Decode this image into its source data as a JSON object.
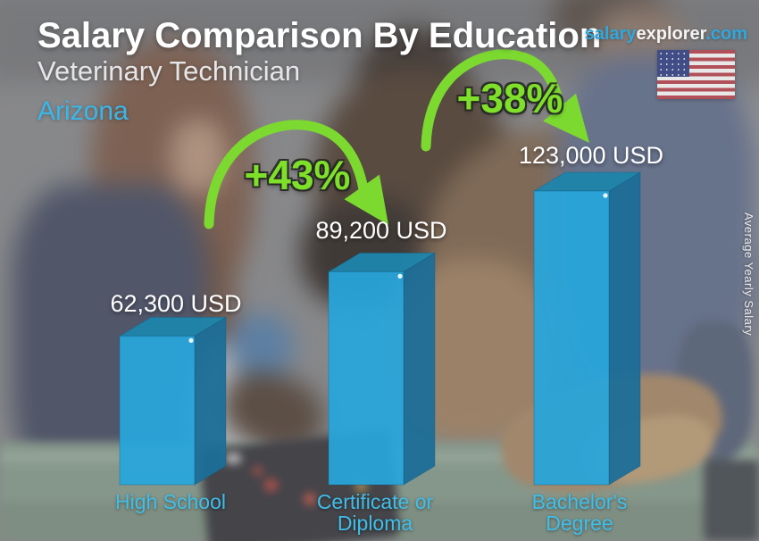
{
  "header": {
    "title": "Salary Comparison By Education",
    "subtitle": "Veterinary Technician",
    "location": "Arizona",
    "brand": {
      "salary": "salary",
      "explorer": "explorer",
      "domain": ".com"
    }
  },
  "flag": {
    "country": "United States"
  },
  "ylabel": "Average Yearly Salary",
  "chart_data": {
    "type": "bar",
    "title": "Salary Comparison By Education",
    "subtitle": "Veterinary Technician",
    "region": "Arizona",
    "unit": "USD",
    "ylabel": "Average Yearly Salary",
    "ylim": [
      0,
      123000
    ],
    "grid": false,
    "legend": "none",
    "categories": [
      "High School",
      "Certificate or Diploma",
      "Bachelor's Degree"
    ],
    "category_lines": [
      [
        "High School",
        ""
      ],
      [
        "Certificate or",
        "Diploma"
      ],
      [
        "Bachelor's",
        "Degree"
      ]
    ],
    "values": [
      62300,
      89200,
      123000
    ],
    "value_labels": [
      "62,300 USD",
      "89,200 USD",
      "123,000 USD"
    ],
    "increases": [
      "+43%",
      "+38%"
    ]
  },
  "colors": {
    "bar_front": "#27a6dc",
    "bar_top": "#1f84ab",
    "bar_side": "#1c6e98",
    "arrow_green": "#7cd930",
    "percent_green": "#7fe02a",
    "category_cyan": "#3fbfea",
    "brand_blue": "#2fa8df",
    "value_white": "#ffffff"
  }
}
